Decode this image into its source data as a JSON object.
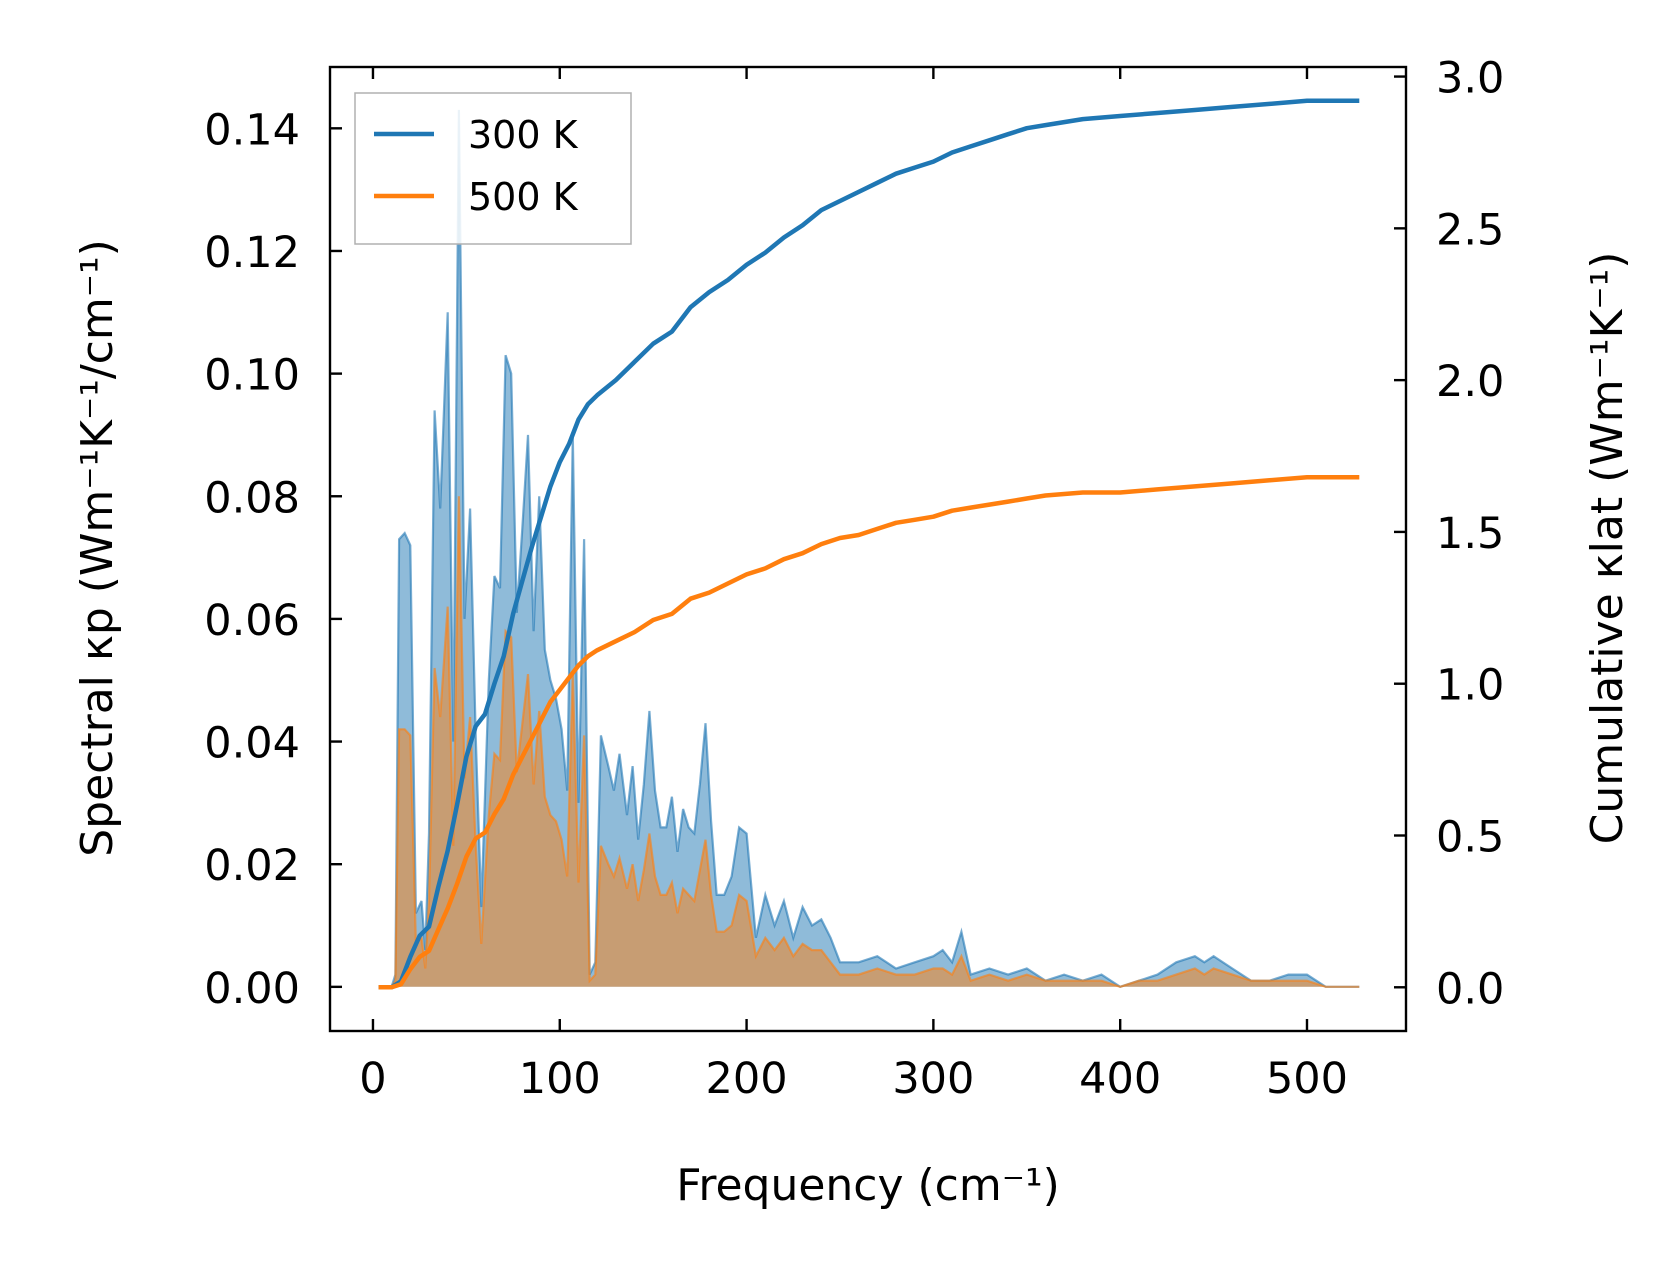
{
  "chart_data": {
    "type": "line",
    "xlabel": "Frequency (cm⁻¹)",
    "ylabel_left": "Spectral κp (Wm⁻¹K⁻¹/cm⁻¹)",
    "ylabel_right": "Cumulative κlat (Wm⁻¹K⁻¹)",
    "xlim": [
      -23,
      553
    ],
    "ylim_left": [
      -0.0072,
      0.15
    ],
    "ylim_right": [
      -0.144,
      3.0315
    ],
    "x_ticks": [
      "0",
      "100",
      "200",
      "300",
      "400",
      "500"
    ],
    "y_left_ticks": [
      "0.00",
      "0.02",
      "0.04",
      "0.06",
      "0.08",
      "0.10",
      "0.12",
      "0.14"
    ],
    "y_right_ticks": [
      "0.0",
      "0.5",
      "1.0",
      "1.5",
      "2.0",
      "2.5",
      "3.0"
    ],
    "legend": {
      "position": "top-left",
      "entries": [
        "300 K",
        "500 K"
      ]
    },
    "series": [
      {
        "name": "300 K",
        "color": "#1f77b4",
        "spectral_x": [
          3,
          10,
          12,
          14,
          17,
          20,
          23,
          26,
          28,
          30,
          33,
          36,
          40,
          43,
          46,
          49,
          52,
          55,
          58,
          62,
          65,
          68,
          71,
          74,
          77,
          80,
          83,
          86,
          89,
          92,
          95,
          98,
          101,
          104,
          107,
          110,
          113,
          116,
          119,
          122,
          126,
          129,
          132,
          136,
          139,
          142,
          145,
          148,
          151,
          154,
          157,
          160,
          163,
          166,
          169,
          172,
          175,
          178,
          181,
          184,
          188,
          192,
          196,
          200,
          205,
          210,
          215,
          220,
          225,
          230,
          235,
          240,
          245,
          250,
          260,
          270,
          280,
          290,
          300,
          305,
          310,
          315,
          320,
          330,
          340,
          350,
          360,
          370,
          380,
          390,
          400,
          410,
          420,
          430,
          440,
          445,
          450,
          460,
          470,
          480,
          490,
          500,
          510,
          520,
          528
        ],
        "spectral_y": [
          0,
          0,
          0.002,
          0.073,
          0.074,
          0.072,
          0.012,
          0.014,
          0.006,
          0.025,
          0.094,
          0.078,
          0.11,
          0.04,
          0.143,
          0.06,
          0.078,
          0.041,
          0.013,
          0.05,
          0.067,
          0.065,
          0.103,
          0.1,
          0.061,
          0.075,
          0.09,
          0.058,
          0.08,
          0.055,
          0.05,
          0.047,
          0.042,
          0.032,
          0.09,
          0.03,
          0.073,
          0.002,
          0.004,
          0.041,
          0.036,
          0.032,
          0.038,
          0.028,
          0.036,
          0.024,
          0.033,
          0.045,
          0.032,
          0.026,
          0.026,
          0.031,
          0.022,
          0.029,
          0.026,
          0.025,
          0.033,
          0.043,
          0.027,
          0.015,
          0.015,
          0.018,
          0.026,
          0.025,
          0.008,
          0.015,
          0.01,
          0.014,
          0.008,
          0.013,
          0.01,
          0.011,
          0.008,
          0.004,
          0.004,
          0.005,
          0.003,
          0.004,
          0.005,
          0.006,
          0.004,
          0.009,
          0.002,
          0.003,
          0.002,
          0.003,
          0.001,
          0.002,
          0.001,
          0.002,
          0.0,
          0.001,
          0.002,
          0.004,
          0.005,
          0.004,
          0.005,
          0.003,
          0.001,
          0.001,
          0.002,
          0.002,
          0.0,
          0.0,
          0.0
        ],
        "cumulative_x": [
          3,
          10,
          15,
          20,
          25,
          30,
          35,
          40,
          45,
          50,
          55,
          60,
          65,
          70,
          75,
          80,
          85,
          90,
          95,
          100,
          105,
          110,
          115,
          120,
          130,
          140,
          150,
          160,
          170,
          180,
          190,
          200,
          210,
          220,
          230,
          240,
          250,
          260,
          270,
          280,
          290,
          300,
          310,
          320,
          330,
          340,
          350,
          360,
          380,
          400,
          420,
          440,
          460,
          480,
          500,
          515,
          528
        ],
        "cumulative_y": [
          0,
          0,
          0.02,
          0.1,
          0.17,
          0.2,
          0.33,
          0.45,
          0.6,
          0.76,
          0.86,
          0.9,
          1.0,
          1.09,
          1.23,
          1.34,
          1.45,
          1.55,
          1.65,
          1.73,
          1.79,
          1.87,
          1.92,
          1.95,
          2.0,
          2.06,
          2.12,
          2.16,
          2.24,
          2.29,
          2.33,
          2.38,
          2.42,
          2.47,
          2.51,
          2.56,
          2.59,
          2.62,
          2.65,
          2.68,
          2.7,
          2.72,
          2.75,
          2.77,
          2.79,
          2.81,
          2.83,
          2.84,
          2.86,
          2.87,
          2.88,
          2.89,
          2.9,
          2.91,
          2.92,
          2.92,
          2.92
        ]
      },
      {
        "name": "500 K",
        "color": "#ff7f0e",
        "spectral_x": [
          3,
          10,
          12,
          14,
          17,
          20,
          23,
          26,
          28,
          30,
          33,
          36,
          40,
          43,
          46,
          49,
          52,
          55,
          58,
          62,
          65,
          68,
          71,
          74,
          77,
          80,
          83,
          86,
          89,
          92,
          95,
          98,
          101,
          104,
          107,
          110,
          113,
          116,
          119,
          122,
          126,
          129,
          132,
          136,
          139,
          142,
          145,
          148,
          151,
          154,
          157,
          160,
          163,
          166,
          169,
          172,
          175,
          178,
          181,
          184,
          188,
          192,
          196,
          200,
          205,
          210,
          215,
          220,
          225,
          230,
          235,
          240,
          245,
          250,
          260,
          270,
          280,
          290,
          300,
          305,
          310,
          315,
          320,
          330,
          340,
          350,
          360,
          370,
          380,
          390,
          400,
          410,
          420,
          430,
          440,
          445,
          450,
          460,
          470,
          480,
          490,
          500,
          510,
          520,
          528
        ],
        "spectral_y": [
          0,
          0,
          0.001,
          0.042,
          0.042,
          0.041,
          0.007,
          0.008,
          0.003,
          0.014,
          0.052,
          0.044,
          0.062,
          0.023,
          0.08,
          0.034,
          0.044,
          0.023,
          0.007,
          0.028,
          0.038,
          0.037,
          0.058,
          0.057,
          0.035,
          0.043,
          0.051,
          0.033,
          0.045,
          0.031,
          0.028,
          0.027,
          0.024,
          0.018,
          0.051,
          0.017,
          0.041,
          0.001,
          0.002,
          0.023,
          0.02,
          0.018,
          0.021,
          0.016,
          0.02,
          0.014,
          0.019,
          0.025,
          0.018,
          0.015,
          0.015,
          0.017,
          0.012,
          0.016,
          0.015,
          0.014,
          0.019,
          0.024,
          0.015,
          0.009,
          0.009,
          0.01,
          0.015,
          0.014,
          0.005,
          0.008,
          0.006,
          0.008,
          0.005,
          0.007,
          0.006,
          0.006,
          0.004,
          0.002,
          0.002,
          0.003,
          0.002,
          0.002,
          0.003,
          0.003,
          0.002,
          0.005,
          0.001,
          0.002,
          0.001,
          0.002,
          0.001,
          0.001,
          0.001,
          0.001,
          0.0,
          0.001,
          0.001,
          0.002,
          0.003,
          0.002,
          0.003,
          0.002,
          0.001,
          0.001,
          0.001,
          0.001,
          0.0,
          0.0,
          0.0
        ],
        "cumulative_x": [
          3,
          10,
          15,
          20,
          25,
          30,
          35,
          40,
          45,
          50,
          55,
          60,
          65,
          70,
          75,
          80,
          85,
          90,
          95,
          100,
          105,
          110,
          115,
          120,
          130,
          140,
          150,
          160,
          170,
          180,
          190,
          200,
          210,
          220,
          230,
          240,
          250,
          260,
          270,
          280,
          290,
          300,
          310,
          320,
          330,
          340,
          350,
          360,
          380,
          400,
          420,
          440,
          460,
          480,
          500,
          515,
          528
        ],
        "cumulative_y": [
          0,
          0,
          0.01,
          0.06,
          0.1,
          0.12,
          0.19,
          0.26,
          0.34,
          0.43,
          0.49,
          0.51,
          0.57,
          0.62,
          0.7,
          0.76,
          0.82,
          0.88,
          0.94,
          0.98,
          1.02,
          1.06,
          1.09,
          1.11,
          1.14,
          1.17,
          1.21,
          1.23,
          1.28,
          1.3,
          1.33,
          1.36,
          1.38,
          1.41,
          1.43,
          1.46,
          1.48,
          1.49,
          1.51,
          1.53,
          1.54,
          1.55,
          1.57,
          1.58,
          1.59,
          1.6,
          1.61,
          1.62,
          1.63,
          1.63,
          1.64,
          1.65,
          1.66,
          1.67,
          1.68,
          1.68,
          1.68
        ]
      }
    ]
  }
}
